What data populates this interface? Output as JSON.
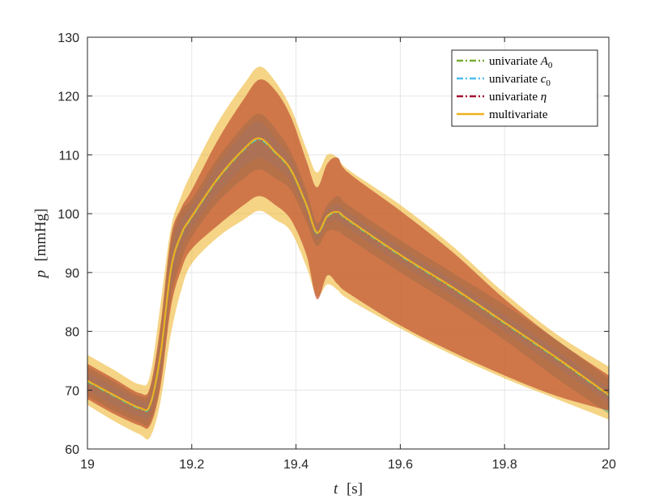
{
  "chart_data": {
    "type": "area",
    "title": "",
    "xlabel": {
      "var": "t",
      "unit": "[s]"
    },
    "ylabel": {
      "var": "p",
      "unit": "[mmHg]"
    },
    "xlim": [
      19,
      20
    ],
    "ylim": [
      60,
      130
    ],
    "xticks": [
      19,
      19.2,
      19.4,
      19.6,
      19.8,
      20
    ],
    "xtick_labels": [
      "19",
      "19.2",
      "19.4",
      "19.6",
      "19.8",
      "20"
    ],
    "yticks": [
      60,
      70,
      80,
      90,
      100,
      110,
      120,
      130
    ],
    "ytick_labels": [
      "60",
      "70",
      "80",
      "90",
      "100",
      "110",
      "120",
      "130"
    ],
    "grid": true,
    "legend_position": "top-right",
    "legend": [
      {
        "label": "univariate A",
        "sub": "0",
        "style": "dashdot",
        "color": "#77AC30"
      },
      {
        "label": "univariate c",
        "sub": "0",
        "style": "dashdot",
        "color": "#4DBEEE"
      },
      {
        "label": "univariate η",
        "sub": "",
        "style": "dashdot",
        "color": "#A2142F"
      },
      {
        "label": "multivariate",
        "sub": "",
        "style": "solid",
        "color": "#EDB120"
      }
    ],
    "x": [
      19.0,
      19.05,
      19.1,
      19.12,
      19.14,
      19.16,
      19.18,
      19.2,
      19.25,
      19.3,
      19.33,
      19.36,
      19.39,
      19.42,
      19.44,
      19.46,
      19.48,
      19.5,
      19.6,
      19.7,
      19.8,
      19.9,
      20.0
    ],
    "series": [
      {
        "name": "multivariate",
        "color": "#EDB120",
        "mean": [
          71.6,
          69.2,
          67.0,
          67.5,
          76.0,
          90.5,
          96.5,
          99.5,
          106.0,
          111.0,
          112.8,
          110.5,
          107.5,
          101.5,
          96.8,
          99.6,
          100.3,
          99.0,
          93.0,
          87.5,
          81.5,
          75.5,
          69.2
        ],
        "lower": [
          67.5,
          64.8,
          62.5,
          62.0,
          68.0,
          79.5,
          87.0,
          91.5,
          96.0,
          99.0,
          100.5,
          99.0,
          97.0,
          91.0,
          86.0,
          88.0,
          87.0,
          85.5,
          80.5,
          76.0,
          72.0,
          68.5,
          65.0
        ],
        "upper": [
          76.0,
          73.5,
          71.0,
          72.5,
          84.5,
          97.5,
          103.0,
          107.0,
          115.5,
          122.0,
          125.0,
          122.5,
          118.0,
          111.0,
          107.0,
          110.0,
          109.5,
          107.5,
          101.5,
          94.5,
          86.5,
          79.5,
          74.0
        ]
      },
      {
        "name": "univariate A0",
        "color": "#77AC30",
        "mean": [
          71.4,
          69.0,
          66.8,
          67.3,
          75.8,
          90.3,
          96.3,
          99.3,
          105.8,
          110.8,
          112.5,
          110.3,
          107.3,
          101.3,
          96.6,
          99.4,
          100.1,
          98.8,
          92.8,
          87.3,
          81.3,
          75.3,
          69.0
        ],
        "lower": [
          69.0,
          66.5,
          64.5,
          64.5,
          71.5,
          85.5,
          92.0,
          96.0,
          102.0,
          106.0,
          107.5,
          106.0,
          104.0,
          98.5,
          94.5,
          97.0,
          97.0,
          95.8,
          90.0,
          84.5,
          78.5,
          72.0,
          66.0
        ],
        "upper": [
          74.0,
          71.5,
          69.0,
          70.0,
          80.0,
          95.0,
          100.5,
          102.5,
          109.5,
          115.0,
          117.0,
          114.5,
          110.5,
          104.0,
          98.5,
          101.5,
          103.0,
          101.5,
          95.5,
          90.0,
          84.5,
          78.5,
          72.0
        ]
      },
      {
        "name": "univariate c0",
        "color": "#4DBEEE",
        "mean": [
          71.5,
          69.1,
          66.9,
          67.4,
          75.9,
          90.4,
          96.4,
          99.4,
          105.9,
          110.9,
          112.6,
          110.4,
          107.4,
          101.4,
          96.7,
          99.5,
          100.2,
          98.9,
          92.9,
          87.4,
          81.4,
          75.4,
          69.1
        ],
        "lower": [
          70.0,
          67.5,
          65.5,
          65.8,
          73.5,
          87.5,
          94.0,
          97.5,
          103.5,
          108.0,
          109.5,
          108.0,
          105.5,
          99.8,
          95.5,
          98.3,
          98.8,
          97.5,
          91.5,
          86.0,
          80.0,
          74.0,
          67.8
        ],
        "upper": [
          73.0,
          70.7,
          68.3,
          69.0,
          78.5,
          93.5,
          99.0,
          101.3,
          108.3,
          113.8,
          115.7,
          112.8,
          109.3,
          103.0,
          98.0,
          100.7,
          101.6,
          100.3,
          94.3,
          88.8,
          82.8,
          76.8,
          70.4
        ]
      },
      {
        "name": "univariate η",
        "color": "#A2142F",
        "mean": [
          71.5,
          69.1,
          66.9,
          67.4,
          75.9,
          90.4,
          96.4,
          99.4,
          105.9,
          110.9,
          112.7,
          110.4,
          107.4,
          101.4,
          96.7,
          99.5,
          100.2,
          98.9,
          92.9,
          87.4,
          81.4,
          75.4,
          69.1
        ],
        "lower": [
          68.5,
          66.0,
          64.0,
          64.0,
          70.5,
          84.0,
          90.5,
          94.0,
          98.0,
          101.5,
          103.0,
          101.5,
          99.0,
          93.0,
          85.5,
          89.5,
          88.0,
          86.5,
          81.0,
          76.5,
          72.5,
          69.0,
          66.5
        ],
        "upper": [
          74.5,
          72.0,
          69.5,
          70.5,
          81.0,
          96.0,
          101.0,
          104.0,
          112.5,
          119.5,
          122.8,
          121.0,
          116.5,
          109.0,
          104.5,
          108.5,
          109.5,
          107.0,
          100.5,
          93.5,
          85.5,
          78.5,
          72.5
        ]
      }
    ]
  }
}
